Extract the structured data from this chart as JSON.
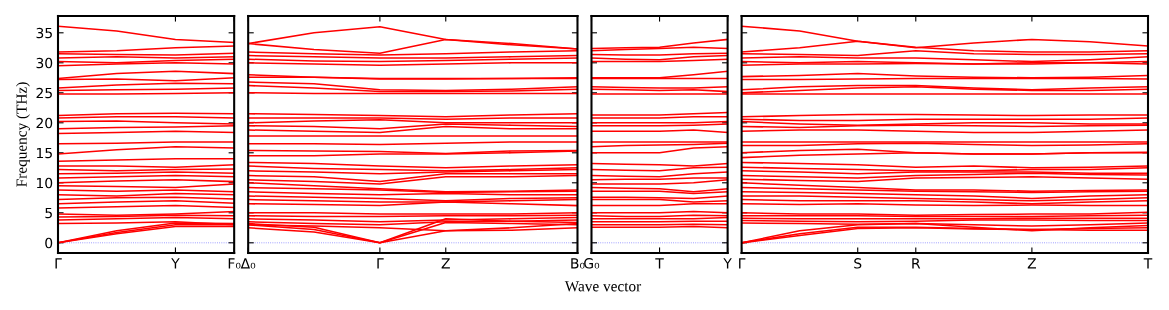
{
  "chart_data": [
    {
      "type": "line",
      "ylabel": "Frequency (THz)",
      "color": "#ff0000",
      "line_style": "solid",
      "grid": false,
      "categories": [
        "Γ",
        null,
        "Y",
        "F₀"
      ],
      "ylim": [
        -1.7,
        37.8
      ],
      "yticks": [
        0,
        5,
        10,
        15,
        20,
        25,
        30,
        35
      ],
      "ref_lines": [
        {
          "axis": "y",
          "value": 0,
          "label": null,
          "color": "#7777ff",
          "line_style": "dotted"
        }
      ],
      "series": [
        {
          "values": [
            0,
            1.5,
            2.7,
            2.7
          ]
        },
        {
          "values": [
            0,
            1.7,
            3.0,
            3.0
          ]
        },
        {
          "values": [
            0,
            2.0,
            3.3,
            3.2
          ]
        },
        {
          "values": [
            3.2,
            3.3,
            3.5,
            3.0
          ]
        },
        {
          "values": [
            3.8,
            4.0,
            4.2,
            4.0
          ]
        },
        {
          "values": [
            4.3,
            4.4,
            4.6,
            4.5
          ]
        },
        {
          "values": [
            4.8,
            4.6,
            4.8,
            5.2
          ]
        },
        {
          "values": [
            5.8,
            6.0,
            6.2,
            5.9
          ]
        },
        {
          "values": [
            6.5,
            6.8,
            7.0,
            6.6
          ]
        },
        {
          "values": [
            7.2,
            7.5,
            7.6,
            7.3
          ]
        },
        {
          "values": [
            8.0,
            7.8,
            8.2,
            8.0
          ]
        },
        {
          "values": [
            8.8,
            8.6,
            8.8,
            8.5
          ]
        },
        {
          "values": [
            9.5,
            9.4,
            9.2,
            9.8
          ]
        },
        {
          "values": [
            10.0,
            10.3,
            10.5,
            10.2
          ]
        },
        {
          "values": [
            10.8,
            11.0,
            11.2,
            11.0
          ]
        },
        {
          "values": [
            11.5,
            11.6,
            11.8,
            11.6
          ]
        },
        {
          "values": [
            12.2,
            12.0,
            12.2,
            12.3
          ]
        },
        {
          "values": [
            12.8,
            12.8,
            12.6,
            13.0
          ]
        },
        {
          "values": [
            13.6,
            13.8,
            14.0,
            14.0
          ]
        },
        {
          "values": [
            14.8,
            15.5,
            16.0,
            15.8
          ]
        },
        {
          "values": [
            16.5,
            16.6,
            16.8,
            16.8
          ]
        },
        {
          "values": [
            18.2,
            18.4,
            18.6,
            18.4
          ]
        },
        {
          "values": [
            19.0,
            19.2,
            19.3,
            19.5
          ]
        },
        {
          "values": [
            20.2,
            20.3,
            20.0,
            19.8
          ]
        },
        {
          "values": [
            20.8,
            21.0,
            21.0,
            20.8
          ]
        },
        {
          "values": [
            21.2,
            21.5,
            21.6,
            21.5
          ]
        },
        {
          "values": [
            24.8,
            24.8,
            24.9,
            25.0
          ]
        },
        {
          "values": [
            25.4,
            25.5,
            25.6,
            25.8
          ]
        },
        {
          "values": [
            25.8,
            26.3,
            26.6,
            26.5
          ]
        },
        {
          "values": [
            27.2,
            27.3,
            27.0,
            27.5
          ]
        },
        {
          "values": [
            27.4,
            28.2,
            28.6,
            28.2
          ]
        },
        {
          "values": [
            29.5,
            29.8,
            30.0,
            29.8
          ]
        },
        {
          "values": [
            30.2,
            30.0,
            30.4,
            30.6
          ]
        },
        {
          "values": [
            30.8,
            31.0,
            30.8,
            31.0
          ]
        },
        {
          "values": [
            31.5,
            31.4,
            31.3,
            31.6
          ]
        },
        {
          "values": [
            31.8,
            32.0,
            32.5,
            32.8
          ]
        },
        {
          "values": [
            36.1,
            35.3,
            33.9,
            33.4
          ]
        }
      ]
    },
    {
      "type": "line",
      "xlabel": "Wave vector",
      "color": "#ff0000",
      "line_style": "solid",
      "grid": false,
      "tick_labels": "x",
      "categories": [
        "Δ₀",
        null,
        "Γ",
        "Z",
        null,
        "B₀"
      ],
      "ylim": [
        -1.7,
        37.8
      ],
      "yticks": [
        0,
        5,
        10,
        15,
        20,
        25,
        30,
        35
      ],
      "ref_lines": [
        {
          "axis": "y",
          "value": 0,
          "label": null,
          "color": "#7777ff",
          "line_style": "dotted"
        }
      ],
      "series": [
        {
          "values": [
            33.2,
            35.0,
            36.0,
            33.9,
            33.2,
            32.3
          ]
        },
        {
          "values": [
            33.2,
            32.2,
            31.6,
            33.9,
            33.0,
            32.3
          ]
        },
        {
          "values": [
            31.8,
            31.5,
            31.3,
            31.5,
            31.8,
            32.0
          ]
        },
        {
          "values": [
            31.2,
            31.0,
            30.8,
            30.8,
            31.0,
            31.2
          ]
        },
        {
          "values": [
            30.6,
            30.3,
            30.2,
            30.4,
            30.6,
            30.8
          ]
        },
        {
          "values": [
            30.0,
            29.8,
            29.6,
            29.8,
            30.0,
            30.0
          ]
        },
        {
          "values": [
            28.0,
            27.6,
            27.3,
            27.3,
            27.4,
            27.5
          ]
        },
        {
          "values": [
            27.6,
            27.6,
            27.4,
            27.4,
            27.4,
            27.4
          ]
        },
        {
          "values": [
            26.8,
            26.5,
            25.5,
            25.4,
            25.6,
            26.0
          ]
        },
        {
          "values": [
            26.2,
            25.8,
            25.2,
            25.2,
            25.3,
            25.6
          ]
        },
        {
          "values": [
            25.0,
            24.9,
            24.9,
            24.9,
            24.9,
            24.9
          ]
        },
        {
          "values": [
            21.5,
            21.4,
            21.2,
            21.0,
            21.3,
            21.5
          ]
        },
        {
          "values": [
            20.8,
            20.8,
            20.8,
            20.6,
            20.8,
            20.8
          ]
        },
        {
          "values": [
            20.0,
            20.3,
            20.5,
            20.0,
            20.0,
            20.0
          ]
        },
        {
          "values": [
            19.5,
            19.4,
            19.0,
            19.8,
            19.6,
            19.4
          ]
        },
        {
          "values": [
            18.8,
            18.6,
            18.4,
            19.4,
            19.0,
            19.0
          ]
        },
        {
          "values": [
            17.8,
            17.8,
            17.8,
            17.8,
            17.8,
            17.8
          ]
        },
        {
          "values": [
            16.5,
            16.5,
            16.4,
            16.6,
            16.8,
            16.8
          ]
        },
        {
          "values": [
            15.4,
            15.3,
            15.2,
            14.9,
            15.3,
            15.4
          ]
        },
        {
          "values": [
            14.5,
            14.5,
            14.8,
            14.8,
            15.0,
            15.3
          ]
        },
        {
          "values": [
            13.4,
            13.2,
            12.8,
            12.5,
            12.8,
            13.0
          ]
        },
        {
          "values": [
            12.8,
            12.4,
            12.2,
            12.0,
            12.2,
            12.5
          ]
        },
        {
          "values": [
            12.0,
            11.8,
            11.5,
            11.8,
            12.0,
            12.2
          ]
        },
        {
          "values": [
            11.2,
            11.0,
            10.2,
            11.5,
            11.5,
            11.5
          ]
        },
        {
          "values": [
            10.5,
            10.2,
            9.8,
            11.0,
            11.0,
            11.2
          ]
        },
        {
          "values": [
            10.0,
            9.5,
            9.0,
            8.5,
            8.6,
            8.8
          ]
        },
        {
          "values": [
            9.2,
            9.0,
            8.8,
            8.4,
            8.5,
            8.6
          ]
        },
        {
          "values": [
            8.5,
            8.2,
            8.0,
            8.2,
            8.0,
            8.0
          ]
        },
        {
          "values": [
            7.8,
            7.6,
            7.4,
            7.0,
            7.4,
            7.5
          ]
        },
        {
          "values": [
            7.2,
            7.0,
            6.8,
            6.8,
            7.0,
            7.2
          ]
        },
        {
          "values": [
            6.5,
            6.4,
            6.2,
            6.8,
            6.5,
            6.2
          ]
        },
        {
          "values": [
            5.0,
            5.0,
            4.8,
            4.8,
            4.8,
            5.0
          ]
        },
        {
          "values": [
            4.5,
            4.4,
            4.4,
            4.5,
            4.5,
            4.6
          ]
        },
        {
          "values": [
            4.0,
            3.8,
            3.5,
            3.8,
            4.0,
            4.2
          ]
        },
        {
          "values": [
            3.5,
            3.2,
            3.0,
            3.5,
            3.6,
            3.8
          ]
        },
        {
          "values": [
            3.0,
            2.8,
            2.5,
            2.0,
            2.5,
            3.2
          ]
        },
        {
          "values": [
            2.5,
            1.8,
            0,
            2.0,
            2.1,
            2.5
          ]
        },
        {
          "values": [
            3.0,
            2.2,
            0,
            3.4,
            3.2,
            3.0
          ]
        },
        {
          "values": [
            3.2,
            2.6,
            0,
            4.0,
            3.6,
            3.4
          ]
        }
      ]
    },
    {
      "type": "line",
      "color": "#ff0000",
      "line_style": "solid",
      "grid": false,
      "tick_labels": "x",
      "categories": [
        "G₀",
        null,
        "T",
        null,
        "Y"
      ],
      "ylim": [
        -1.7,
        37.8
      ],
      "yticks": [
        0,
        5,
        10,
        15,
        20,
        25,
        30,
        35
      ],
      "ref_lines": [
        {
          "axis": "y",
          "value": 0,
          "label": null,
          "color": "#7777ff",
          "line_style": "dotted"
        }
      ],
      "series": [
        {
          "values": [
            32.4,
            32.5,
            32.6,
            33.3,
            33.9
          ]
        },
        {
          "values": [
            32.0,
            32.2,
            32.4,
            32.6,
            32.4
          ]
        },
        {
          "values": [
            31.4,
            31.3,
            31.3,
            31.5,
            31.6
          ]
        },
        {
          "values": [
            30.8,
            30.6,
            30.5,
            31.0,
            31.2
          ]
        },
        {
          "values": [
            30.2,
            30.2,
            30.2,
            30.4,
            30.6
          ]
        },
        {
          "values": [
            27.5,
            27.5,
            27.5,
            28.0,
            28.6
          ]
        },
        {
          "values": [
            27.4,
            27.4,
            27.4,
            27.4,
            27.4
          ]
        },
        {
          "values": [
            26.0,
            25.9,
            25.8,
            25.8,
            26.0
          ]
        },
        {
          "values": [
            25.6,
            25.5,
            25.4,
            25.5,
            25.2
          ]
        },
        {
          "values": [
            24.8,
            24.8,
            24.8,
            24.8,
            24.8
          ]
        },
        {
          "values": [
            21.3,
            21.3,
            21.3,
            21.5,
            21.7
          ]
        },
        {
          "values": [
            20.8,
            20.8,
            20.8,
            21.0,
            21.0
          ]
        },
        {
          "values": [
            20.0,
            20.0,
            20.0,
            20.0,
            20.2
          ]
        },
        {
          "values": [
            19.5,
            19.5,
            19.5,
            19.6,
            19.8
          ]
        },
        {
          "values": [
            18.6,
            18.6,
            18.6,
            18.8,
            18.4
          ]
        },
        {
          "values": [
            16.8,
            16.8,
            16.8,
            16.8,
            16.8
          ]
        },
        {
          "values": [
            16.0,
            16.2,
            16.3,
            16.4,
            16.6
          ]
        },
        {
          "values": [
            15.0,
            15.0,
            15.0,
            15.8,
            16.0
          ]
        },
        {
          "values": [
            13.2,
            13.1,
            13.0,
            12.8,
            13.2
          ]
        },
        {
          "values": [
            12.2,
            12.1,
            12.0,
            12.5,
            12.6
          ]
        },
        {
          "values": [
            11.2,
            11.1,
            11.0,
            11.5,
            11.8
          ]
        },
        {
          "values": [
            10.5,
            10.6,
            10.6,
            10.8,
            10.8
          ]
        },
        {
          "values": [
            9.8,
            9.8,
            9.8,
            10.0,
            10.5
          ]
        },
        {
          "values": [
            9.2,
            9.1,
            9.0,
            8.5,
            9.0
          ]
        },
        {
          "values": [
            8.6,
            8.6,
            8.6,
            8.2,
            8.5
          ]
        },
        {
          "values": [
            7.6,
            7.6,
            7.5,
            7.4,
            7.8
          ]
        },
        {
          "values": [
            7.2,
            7.2,
            7.2,
            6.8,
            7.0
          ]
        },
        {
          "values": [
            6.2,
            6.2,
            6.2,
            6.5,
            6.5
          ]
        },
        {
          "values": [
            5.0,
            5.0,
            5.0,
            5.2,
            5.0
          ]
        },
        {
          "values": [
            4.5,
            4.4,
            4.4,
            4.6,
            4.5
          ]
        },
        {
          "values": [
            4.0,
            4.0,
            4.0,
            4.0,
            4.2
          ]
        },
        {
          "values": [
            3.5,
            3.5,
            3.5,
            3.6,
            3.6
          ]
        },
        {
          "values": [
            3.0,
            3.0,
            3.0,
            3.1,
            3.0
          ]
        },
        {
          "values": [
            2.6,
            2.6,
            2.6,
            2.7,
            2.5
          ]
        }
      ]
    },
    {
      "type": "line",
      "color": "#ff0000",
      "line_style": "solid",
      "grid": false,
      "tick_labels": "x",
      "categories": [
        "Γ",
        null,
        "S",
        "R",
        null,
        "Z",
        null,
        "T"
      ],
      "ylim": [
        -1.7,
        37.8
      ],
      "yticks": [
        0,
        5,
        10,
        15,
        20,
        25,
        30,
        35
      ],
      "ref_lines": [
        {
          "axis": "y",
          "value": 0,
          "label": null,
          "color": "#7777ff",
          "line_style": "dotted"
        }
      ],
      "series": [
        {
          "values": [
            36.1,
            35.3,
            33.6,
            32.5,
            33.3,
            33.9,
            33.5,
            32.8
          ]
        },
        {
          "values": [
            31.8,
            32.5,
            33.6,
            32.6,
            32.0,
            31.8,
            31.8,
            32.0
          ]
        },
        {
          "values": [
            31.5,
            31.4,
            31.2,
            32.0,
            31.5,
            31.4,
            31.4,
            31.5
          ]
        },
        {
          "values": [
            30.8,
            31.0,
            30.8,
            30.8,
            30.5,
            30.2,
            30.5,
            31.0
          ]
        },
        {
          "values": [
            30.2,
            30.0,
            30.2,
            30.0,
            29.8,
            29.8,
            30.0,
            30.2
          ]
        },
        {
          "values": [
            29.6,
            29.8,
            29.8,
            29.9,
            29.8,
            30.0,
            30.0,
            29.8
          ]
        },
        {
          "values": [
            27.7,
            27.9,
            28.2,
            27.8,
            27.6,
            27.5,
            27.6,
            27.9
          ]
        },
        {
          "values": [
            27.2,
            27.2,
            27.3,
            27.4,
            27.4,
            27.4,
            27.4,
            27.3
          ]
        },
        {
          "values": [
            25.5,
            26.0,
            26.2,
            26.2,
            25.8,
            25.5,
            25.8,
            26.0
          ]
        },
        {
          "values": [
            25.0,
            25.4,
            25.8,
            26.0,
            25.6,
            25.4,
            25.4,
            25.6
          ]
        },
        {
          "values": [
            24.8,
            24.8,
            24.8,
            24.8,
            24.8,
            24.8,
            24.8,
            24.8
          ]
        },
        {
          "values": [
            21.0,
            21.2,
            21.4,
            21.4,
            21.3,
            21.2,
            21.3,
            21.3
          ]
        },
        {
          "values": [
            20.6,
            20.4,
            20.4,
            20.6,
            20.6,
            20.6,
            20.6,
            20.8
          ]
        },
        {
          "values": [
            20.2,
            19.8,
            19.6,
            19.8,
            20.0,
            20.0,
            19.8,
            19.8
          ]
        },
        {
          "values": [
            19.4,
            19.2,
            19.5,
            19.6,
            19.5,
            19.4,
            19.5,
            19.6
          ]
        },
        {
          "values": [
            18.6,
            18.8,
            18.8,
            18.6,
            18.4,
            18.4,
            18.6,
            18.8
          ]
        },
        {
          "values": [
            16.8,
            16.8,
            16.8,
            16.8,
            16.8,
            16.8,
            16.8,
            16.8
          ]
        },
        {
          "values": [
            16.2,
            16.2,
            16.5,
            16.6,
            16.4,
            16.2,
            16.3,
            16.5
          ]
        },
        {
          "values": [
            15.0,
            15.4,
            15.6,
            15.0,
            14.8,
            14.8,
            15.0,
            15.0
          ]
        },
        {
          "values": [
            14.2,
            14.6,
            14.8,
            15.0,
            14.8,
            14.8,
            15.0,
            15.1
          ]
        },
        {
          "values": [
            13.4,
            13.2,
            13.0,
            12.6,
            12.8,
            12.5,
            12.6,
            12.8
          ]
        },
        {
          "values": [
            12.6,
            12.4,
            12.2,
            12.0,
            12.0,
            12.2,
            12.2,
            12.5
          ]
        },
        {
          "values": [
            12.0,
            11.8,
            11.5,
            11.8,
            11.8,
            11.8,
            11.6,
            11.6
          ]
        },
        {
          "values": [
            11.2,
            11.0,
            10.8,
            11.2,
            11.4,
            11.6,
            11.4,
            11.3
          ]
        },
        {
          "values": [
            10.6,
            10.4,
            10.2,
            10.8,
            10.9,
            11.0,
            10.8,
            10.6
          ]
        },
        {
          "values": [
            10.0,
            9.6,
            9.2,
            8.8,
            8.8,
            8.6,
            8.7,
            8.8
          ]
        },
        {
          "values": [
            9.2,
            9.0,
            8.8,
            8.6,
            8.5,
            8.4,
            8.5,
            8.6
          ]
        },
        {
          "values": [
            8.5,
            8.4,
            8.2,
            8.0,
            7.8,
            7.4,
            7.8,
            8.0
          ]
        },
        {
          "values": [
            7.8,
            7.8,
            7.6,
            7.4,
            7.2,
            7.0,
            7.2,
            7.5
          ]
        },
        {
          "values": [
            7.2,
            7.0,
            7.0,
            7.0,
            6.8,
            6.5,
            6.8,
            7.0
          ]
        },
        {
          "values": [
            6.5,
            6.4,
            6.5,
            6.3,
            6.2,
            6.3,
            6.2,
            6.2
          ]
        },
        {
          "values": [
            5.0,
            4.8,
            4.8,
            4.6,
            4.7,
            4.8,
            4.8,
            5.1
          ]
        },
        {
          "values": [
            4.5,
            4.5,
            4.5,
            4.4,
            4.4,
            4.4,
            4.5,
            4.6
          ]
        },
        {
          "values": [
            4.1,
            4.0,
            4.0,
            4.0,
            4.0,
            4.1,
            4.1,
            4.1
          ]
        },
        {
          "values": [
            3.7,
            3.6,
            3.5,
            3.6,
            3.8,
            3.8,
            3.7,
            3.7
          ]
        },
        {
          "values": [
            3.3,
            3.2,
            3.1,
            3.2,
            3.0,
            2.8,
            3.0,
            3.3
          ]
        },
        {
          "values": [
            0,
            2.0,
            3.0,
            3.2,
            2.6,
            2.0,
            2.5,
            2.9
          ]
        },
        {
          "values": [
            0,
            1.5,
            2.6,
            2.6,
            2.4,
            2.2,
            2.4,
            2.5
          ]
        },
        {
          "values": [
            0,
            1.2,
            2.4,
            2.5,
            2.3,
            2.2,
            2.1,
            2.1
          ]
        }
      ]
    }
  ]
}
